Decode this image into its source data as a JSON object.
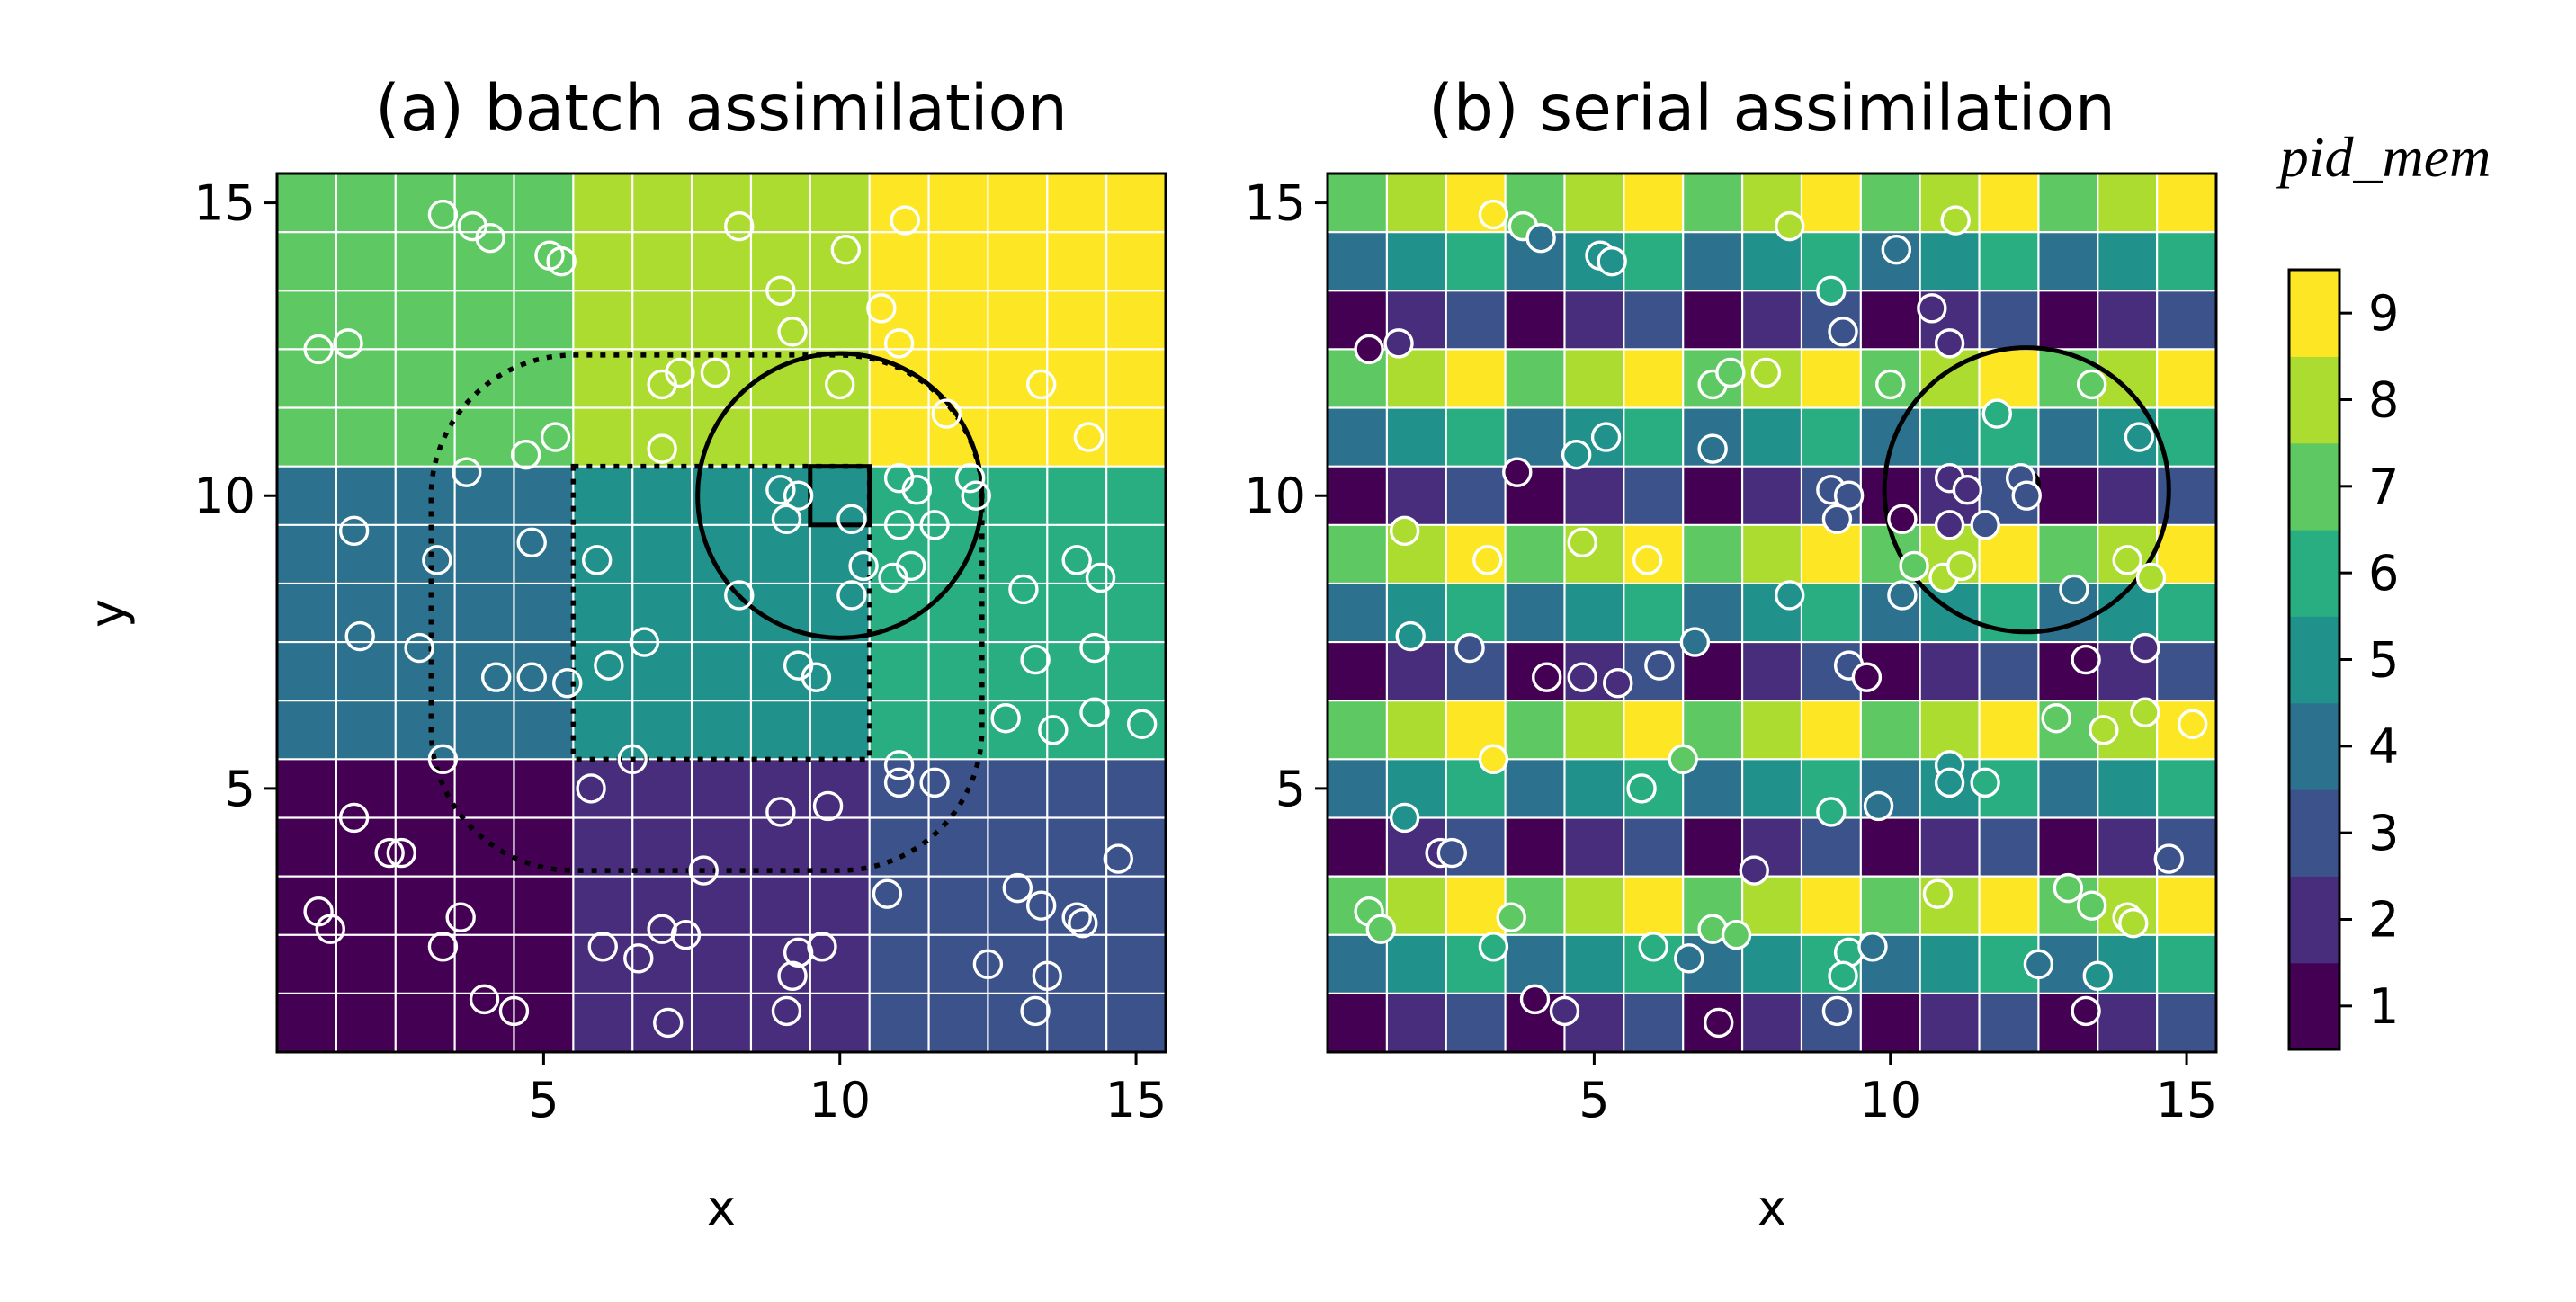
{
  "colorbar": {
    "title": "pid_mem",
    "ticks": [
      1,
      2,
      3,
      4,
      5,
      6,
      7,
      8,
      9
    ],
    "range": [
      0.5,
      9.5
    ],
    "colors": [
      "#440154",
      "#472d7b",
      "#3b528b",
      "#2c728e",
      "#21918c",
      "#28ae80",
      "#5ec962",
      "#addc30",
      "#fde725"
    ]
  },
  "chart_data": [
    {
      "type": "heatmap",
      "title": "(a) batch assimilation",
      "xlabel": "x",
      "ylabel": "y",
      "xlim": [
        0.5,
        15.5
      ],
      "ylim": [
        0.5,
        15.5
      ],
      "xticks": [
        5,
        10,
        15
      ],
      "yticks": [
        5,
        10,
        15
      ],
      "grid": true,
      "grid_x": [
        1,
        2,
        3,
        4,
        5,
        6,
        7,
        8,
        9,
        10,
        11,
        12,
        13,
        14,
        15
      ],
      "grid_y": [
        1,
        2,
        3,
        4,
        5,
        6,
        7,
        8,
        9,
        10,
        11,
        12,
        13,
        14,
        15
      ],
      "grid_values_bottom_to_top": [
        [
          1,
          1,
          1,
          1,
          1,
          2,
          2,
          2,
          2,
          2,
          3,
          3,
          3,
          3,
          3
        ],
        [
          1,
          1,
          1,
          1,
          1,
          2,
          2,
          2,
          2,
          2,
          3,
          3,
          3,
          3,
          3
        ],
        [
          1,
          1,
          1,
          1,
          1,
          2,
          2,
          2,
          2,
          2,
          3,
          3,
          3,
          3,
          3
        ],
        [
          1,
          1,
          1,
          1,
          1,
          2,
          2,
          2,
          2,
          2,
          3,
          3,
          3,
          3,
          3
        ],
        [
          1,
          1,
          1,
          1,
          1,
          2,
          2,
          2,
          2,
          2,
          3,
          3,
          3,
          3,
          3
        ],
        [
          4,
          4,
          4,
          4,
          4,
          5,
          5,
          5,
          5,
          5,
          6,
          6,
          6,
          6,
          6
        ],
        [
          4,
          4,
          4,
          4,
          4,
          5,
          5,
          5,
          5,
          5,
          6,
          6,
          6,
          6,
          6
        ],
        [
          4,
          4,
          4,
          4,
          4,
          5,
          5,
          5,
          5,
          5,
          6,
          6,
          6,
          6,
          6
        ],
        [
          4,
          4,
          4,
          4,
          4,
          5,
          5,
          5,
          5,
          5,
          6,
          6,
          6,
          6,
          6
        ],
        [
          4,
          4,
          4,
          4,
          4,
          5,
          5,
          5,
          5,
          5,
          6,
          6,
          6,
          6,
          6
        ],
        [
          7,
          7,
          7,
          7,
          7,
          8,
          8,
          8,
          8,
          8,
          9,
          9,
          9,
          9,
          9
        ],
        [
          7,
          7,
          7,
          7,
          7,
          8,
          8,
          8,
          8,
          8,
          9,
          9,
          9,
          9,
          9
        ],
        [
          7,
          7,
          7,
          7,
          7,
          8,
          8,
          8,
          8,
          8,
          9,
          9,
          9,
          9,
          9
        ],
        [
          7,
          7,
          7,
          7,
          7,
          8,
          8,
          8,
          8,
          8,
          9,
          9,
          9,
          9,
          9
        ],
        [
          7,
          7,
          7,
          7,
          7,
          8,
          8,
          8,
          8,
          8,
          9,
          9,
          9,
          9,
          9
        ]
      ],
      "observations": [
        [
          3.3,
          14.8
        ],
        [
          3.8,
          14.6
        ],
        [
          4.1,
          14.4
        ],
        [
          5.1,
          14.1
        ],
        [
          5.3,
          14.0
        ],
        [
          8.3,
          14.6
        ],
        [
          10.1,
          14.2
        ],
        [
          11.1,
          14.7
        ],
        [
          9.0,
          13.5
        ],
        [
          9.2,
          12.8
        ],
        [
          10.7,
          13.2
        ],
        [
          11.0,
          12.6
        ],
        [
          1.2,
          12.5
        ],
        [
          1.7,
          12.6
        ],
        [
          7.0,
          11.9
        ],
        [
          7.3,
          12.1
        ],
        [
          7.9,
          12.1
        ],
        [
          10.0,
          11.9
        ],
        [
          13.4,
          11.9
        ],
        [
          11.8,
          11.4
        ],
        [
          5.2,
          11.0
        ],
        [
          4.7,
          10.7
        ],
        [
          3.7,
          10.4
        ],
        [
          7.0,
          10.8
        ],
        [
          14.2,
          11.0
        ],
        [
          9.0,
          10.1
        ],
        [
          9.3,
          10.0
        ],
        [
          9.1,
          9.6
        ],
        [
          10.2,
          9.6
        ],
        [
          11.0,
          10.3
        ],
        [
          12.2,
          10.3
        ],
        [
          11.3,
          10.1
        ],
        [
          12.3,
          10.0
        ],
        [
          11.0,
          9.5
        ],
        [
          11.6,
          9.5
        ],
        [
          1.8,
          9.4
        ],
        [
          4.8,
          9.2
        ],
        [
          5.9,
          8.9
        ],
        [
          3.2,
          8.9
        ],
        [
          10.4,
          8.8
        ],
        [
          10.9,
          8.6
        ],
        [
          11.2,
          8.8
        ],
        [
          8.3,
          8.3
        ],
        [
          10.2,
          8.3
        ],
        [
          13.1,
          8.4
        ],
        [
          14.0,
          8.9
        ],
        [
          14.4,
          8.6
        ],
        [
          1.9,
          7.6
        ],
        [
          2.9,
          7.4
        ],
        [
          6.7,
          7.5
        ],
        [
          6.1,
          7.1
        ],
        [
          9.3,
          7.1
        ],
        [
          9.6,
          6.9
        ],
        [
          4.2,
          6.9
        ],
        [
          4.8,
          6.9
        ],
        [
          5.4,
          6.8
        ],
        [
          13.3,
          7.2
        ],
        [
          14.3,
          7.4
        ],
        [
          12.8,
          6.2
        ],
        [
          13.6,
          6.0
        ],
        [
          14.3,
          6.3
        ],
        [
          15.1,
          6.1
        ],
        [
          3.3,
          5.5
        ],
        [
          6.5,
          5.5
        ],
        [
          11.0,
          5.4
        ],
        [
          11.0,
          5.1
        ],
        [
          11.6,
          5.1
        ],
        [
          5.8,
          5.0
        ],
        [
          9.8,
          4.7
        ],
        [
          9.0,
          4.6
        ],
        [
          1.8,
          4.5
        ],
        [
          2.4,
          3.9
        ],
        [
          2.6,
          3.9
        ],
        [
          7.7,
          3.6
        ],
        [
          10.8,
          3.2
        ],
        [
          13.0,
          3.3
        ],
        [
          13.4,
          3.0
        ],
        [
          14.0,
          2.8
        ],
        [
          14.1,
          2.7
        ],
        [
          14.7,
          3.8
        ],
        [
          1.2,
          2.9
        ],
        [
          1.4,
          2.6
        ],
        [
          3.6,
          2.8
        ],
        [
          3.3,
          2.3
        ],
        [
          6.0,
          2.3
        ],
        [
          6.6,
          2.1
        ],
        [
          7.0,
          2.6
        ],
        [
          7.4,
          2.5
        ],
        [
          9.3,
          2.2
        ],
        [
          9.7,
          2.3
        ],
        [
          9.2,
          1.8
        ],
        [
          12.5,
          2.0
        ],
        [
          13.5,
          1.8
        ],
        [
          4.0,
          1.4
        ],
        [
          4.5,
          1.2
        ],
        [
          7.1,
          1.0
        ],
        [
          9.1,
          1.2
        ],
        [
          13.3,
          1.2
        ]
      ],
      "annotations": {
        "circle": {
          "center": [
            10,
            10
          ],
          "radius": 2.4
        },
        "square": {
          "x_range": [
            9.5,
            10.5
          ],
          "y_range": [
            9.5,
            10.5
          ]
        },
        "dotted_rect": {
          "x_range": [
            5.5,
            10.5
          ],
          "y_range": [
            5.5,
            10.5
          ]
        },
        "dotted_rounded_rect": {
          "x_range": [
            3.1,
            12.4
          ],
          "y_range": [
            3.6,
            12.4
          ],
          "corner_radius": 2.4
        }
      }
    },
    {
      "type": "heatmap",
      "title": "(b) serial assimilation",
      "xlabel": "x",
      "ylabel": "",
      "xlim": [
        0.5,
        15.5
      ],
      "ylim": [
        0.5,
        15.5
      ],
      "xticks": [
        5,
        10,
        15
      ],
      "yticks": [
        5,
        10,
        15
      ],
      "grid": true,
      "grid_x": [
        1,
        2,
        3,
        4,
        5,
        6,
        7,
        8,
        9,
        10,
        11,
        12,
        13,
        14,
        15
      ],
      "grid_y": [
        1,
        2,
        3,
        4,
        5,
        6,
        7,
        8,
        9,
        10,
        11,
        12,
        13,
        14,
        15
      ],
      "grid_values_bottom_to_top": [
        [
          1,
          2,
          3,
          1,
          2,
          3,
          1,
          2,
          3,
          1,
          2,
          3,
          1,
          2,
          3
        ],
        [
          4,
          5,
          6,
          4,
          5,
          6,
          4,
          5,
          6,
          4,
          5,
          6,
          4,
          5,
          6
        ],
        [
          7,
          8,
          9,
          7,
          8,
          9,
          7,
          8,
          9,
          7,
          8,
          9,
          7,
          8,
          9
        ],
        [
          1,
          2,
          3,
          1,
          2,
          3,
          1,
          2,
          3,
          1,
          2,
          3,
          1,
          2,
          3
        ],
        [
          4,
          5,
          6,
          4,
          5,
          6,
          4,
          5,
          6,
          4,
          5,
          6,
          4,
          5,
          6
        ],
        [
          7,
          8,
          9,
          7,
          8,
          9,
          7,
          8,
          9,
          7,
          8,
          9,
          7,
          8,
          9
        ],
        [
          1,
          2,
          3,
          1,
          2,
          3,
          1,
          2,
          3,
          1,
          2,
          3,
          1,
          2,
          3
        ],
        [
          4,
          5,
          6,
          4,
          5,
          6,
          4,
          5,
          6,
          4,
          5,
          6,
          4,
          5,
          6
        ],
        [
          7,
          8,
          9,
          7,
          8,
          9,
          7,
          8,
          9,
          7,
          8,
          9,
          7,
          8,
          9
        ],
        [
          1,
          2,
          3,
          1,
          2,
          3,
          1,
          2,
          3,
          1,
          2,
          3,
          1,
          2,
          3
        ],
        [
          4,
          5,
          6,
          4,
          5,
          6,
          4,
          5,
          6,
          4,
          5,
          6,
          4,
          5,
          6
        ],
        [
          7,
          8,
          9,
          7,
          8,
          9,
          7,
          8,
          9,
          7,
          8,
          9,
          7,
          8,
          9
        ],
        [
          1,
          2,
          3,
          1,
          2,
          3,
          1,
          2,
          3,
          1,
          2,
          3,
          1,
          2,
          3
        ],
        [
          4,
          5,
          6,
          4,
          5,
          6,
          4,
          5,
          6,
          4,
          5,
          6,
          4,
          5,
          6
        ],
        [
          7,
          8,
          9,
          7,
          8,
          9,
          7,
          8,
          9,
          7,
          8,
          9,
          7,
          8,
          9
        ]
      ],
      "annotations": {
        "circle": {
          "center": [
            12.3,
            10.1
          ],
          "radius": 2.4
        },
        "small_circle": {
          "center": [
            12.3,
            10.2
          ],
          "radius": 0.2
        }
      }
    }
  ]
}
